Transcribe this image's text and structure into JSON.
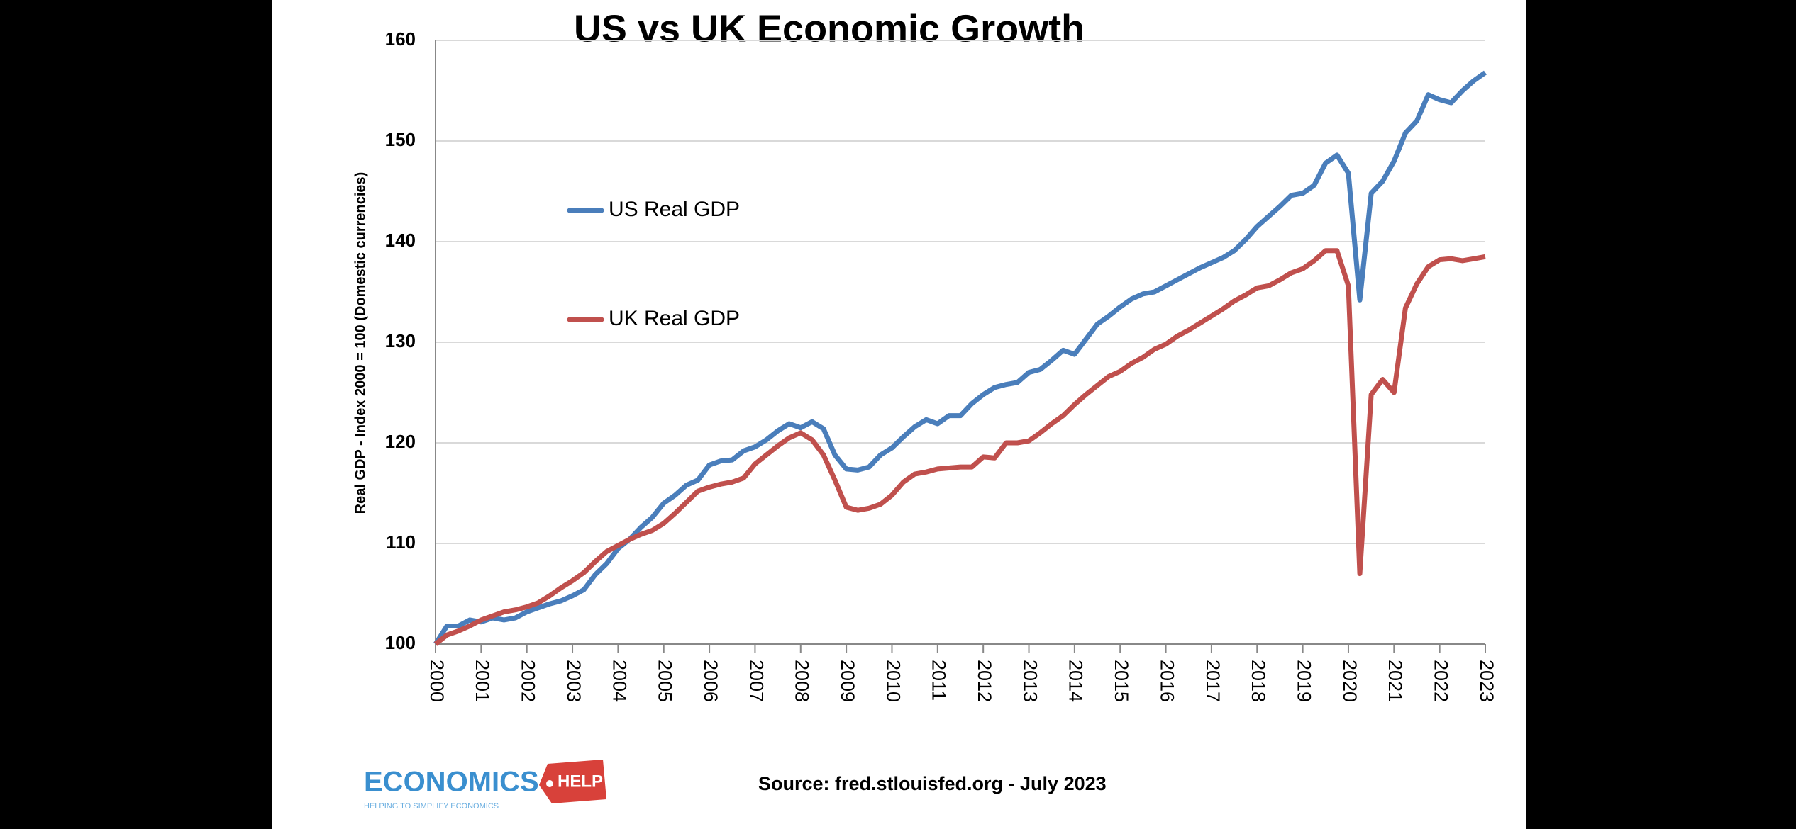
{
  "chart_data": {
    "type": "line",
    "title": "US vs UK Economic Growth",
    "y_label": "Real GDP - Index  2000 = 100 (Domestic currencies)",
    "source": "Source: fred.stlouisfed.org - July 2023",
    "logo": {
      "name": "ECONOMICS",
      "tag": "HELP",
      "tagline": "HELPING TO SIMPLIFY ECONOMICS"
    },
    "categories": [
      "2000",
      null,
      null,
      null,
      "2001",
      null,
      null,
      null,
      "2002",
      null,
      null,
      null,
      "2003",
      null,
      null,
      null,
      "2004",
      null,
      null,
      null,
      "2005",
      null,
      null,
      null,
      "2006",
      null,
      null,
      null,
      "2007",
      null,
      null,
      null,
      "2008",
      null,
      null,
      null,
      "2009",
      null,
      null,
      null,
      "2010",
      null,
      null,
      null,
      "2011",
      null,
      null,
      null,
      "2012",
      null,
      null,
      null,
      "2013",
      null,
      null,
      null,
      "2014",
      null,
      null,
      null,
      "2015",
      null,
      null,
      null,
      "2016",
      null,
      null,
      null,
      "2017",
      null,
      null,
      null,
      "2018",
      null,
      null,
      null,
      "2019",
      null,
      null,
      null,
      "2020",
      null,
      null,
      null,
      "2021",
      null,
      null,
      null,
      "2022",
      null,
      null,
      null,
      "2023"
    ],
    "series": [
      {
        "name": "US Real GDP",
        "color": "#4a7ebb",
        "values": [
          100,
          101.8,
          101.8,
          102.4,
          102.2,
          102.6,
          102.4,
          102.6,
          103.2,
          103.6,
          104.0,
          104.3,
          104.8,
          105.4,
          106.9,
          108.0,
          109.5,
          110.4,
          111.6,
          112.6,
          114.0,
          114.8,
          115.8,
          116.3,
          117.8,
          118.2,
          118.3,
          119.2,
          119.6,
          120.3,
          121.2,
          121.9,
          121.5,
          122.1,
          121.4,
          118.8,
          117.4,
          117.3,
          117.6,
          118.8,
          119.5,
          120.6,
          121.6,
          122.3,
          121.9,
          122.7,
          122.7,
          123.9,
          124.8,
          125.5,
          125.8,
          126.0,
          127.0,
          127.3,
          128.2,
          129.2,
          128.8,
          130.3,
          131.8,
          132.6,
          133.5,
          134.3,
          134.8,
          135.0,
          135.6,
          136.2,
          136.8,
          137.4,
          137.9,
          138.4,
          139.1,
          140.2,
          141.5,
          142.5,
          143.5,
          144.6,
          144.8,
          145.6,
          147.8,
          148.6,
          146.8,
          134.2,
          144.8,
          146.0,
          148.0,
          150.8,
          152.0,
          154.6,
          154.1,
          153.8,
          155.0,
          156.0,
          156.8
        ]
      },
      {
        "name": "UK Real GDP",
        "color": "#c0504d",
        "values": [
          100,
          100.9,
          101.3,
          101.8,
          102.4,
          102.8,
          103.2,
          103.4,
          103.7,
          104.1,
          104.8,
          105.6,
          106.3,
          107.1,
          108.2,
          109.2,
          109.8,
          110.4,
          110.9,
          111.3,
          112.0,
          113.0,
          114.1,
          115.2,
          115.6,
          115.9,
          116.1,
          116.5,
          117.9,
          118.8,
          119.7,
          120.5,
          121.0,
          120.3,
          118.8,
          116.3,
          113.6,
          113.3,
          113.5,
          113.9,
          114.8,
          116.1,
          116.9,
          117.1,
          117.4,
          117.5,
          117.6,
          117.6,
          118.6,
          118.5,
          120.0,
          120.0,
          120.2,
          121.0,
          121.9,
          122.7,
          123.8,
          124.8,
          125.7,
          126.6,
          127.1,
          127.9,
          128.5,
          129.3,
          129.8,
          130.6,
          131.2,
          131.9,
          132.6,
          133.3,
          134.1,
          134.7,
          135.4,
          135.6,
          136.2,
          136.9,
          137.3,
          138.1,
          139.1,
          139.1,
          135.6,
          107.0,
          124.8,
          126.3,
          125.0,
          133.4,
          135.8,
          137.5,
          138.2,
          138.3,
          138.1,
          138.3,
          138.5
        ]
      }
    ],
    "ylim": [
      100,
      160
    ],
    "yticks": [
      100,
      110,
      120,
      130,
      140,
      150,
      160
    ],
    "grid": true
  }
}
